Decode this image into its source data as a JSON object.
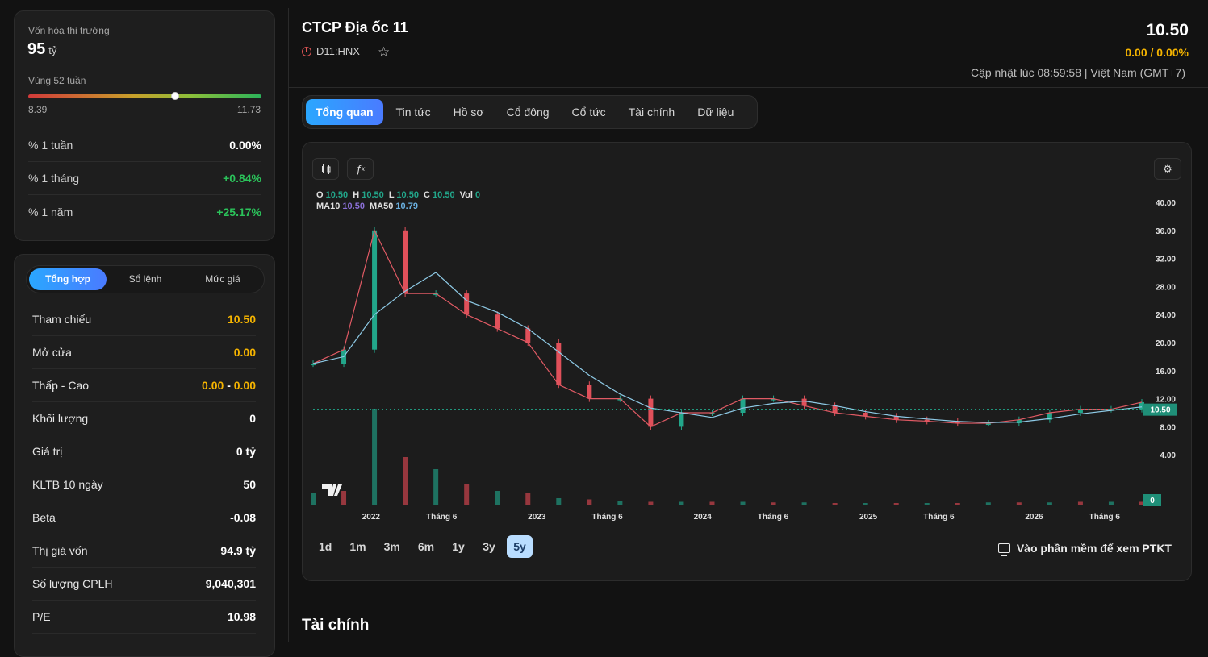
{
  "market_cap": {
    "label": "Vốn hóa thị trường",
    "value": "95",
    "unit": "tỷ"
  },
  "week52": {
    "label": "Vùng 52 tuần",
    "min": "8.39",
    "max": "11.73",
    "position": 0.63
  },
  "performance": [
    {
      "label": "% 1 tuần",
      "value": "0.00%",
      "trend": "flat"
    },
    {
      "label": "% 1 tháng",
      "value": "+0.84%",
      "trend": "up"
    },
    {
      "label": "% 1 năm",
      "value": "+25.17%",
      "trend": "up"
    }
  ],
  "stat_tabs": [
    "Tổng hợp",
    "Sổ lệnh",
    "Mức giá"
  ],
  "stats": {
    "ref": {
      "label": "Tham chiếu",
      "value": "10.50"
    },
    "open": {
      "label": "Mở cửa",
      "value": "0.00"
    },
    "lowhigh": {
      "label": "Thấp - Cao",
      "low": "0.00",
      "sep": "-",
      "high": "0.00"
    },
    "volume": {
      "label": "Khối lượng",
      "value": "0"
    },
    "valuetraded": {
      "label": "Giá trị",
      "value": "0 tỷ"
    },
    "avgvol": {
      "label": "KLTB 10 ngày",
      "value": "50"
    },
    "beta": {
      "label": "Beta",
      "value": "-0.08"
    },
    "mktcap": {
      "label": "Thị giá vốn",
      "value": "94.9 tỷ"
    },
    "shares": {
      "label": "Số lượng CPLH",
      "value": "9,040,301"
    },
    "pe": {
      "label": "P/E",
      "value": "10.98"
    }
  },
  "header": {
    "company": "CTCP Địa ốc 11",
    "ticker": "D11:HNX",
    "price": "10.50",
    "change": "0.00 / 0.00%",
    "updated": "Cập nhật lúc 08:59:58 | Việt Nam (GMT+7)"
  },
  "tabs": [
    "Tổng quan",
    "Tin tức",
    "Hồ sơ",
    "Cổ đông",
    "Cổ tức",
    "Tài chính",
    "Dữ liệu"
  ],
  "ohlc": {
    "o_label": "O",
    "o": "10.50",
    "h_label": "H",
    "h": "10.50",
    "l_label": "L",
    "l": "10.50",
    "c_label": "C",
    "c": "10.50",
    "vol_label": "Vol",
    "vol": "0",
    "ma10_label": "MA10",
    "ma10": "10.50",
    "ma50_label": "MA50",
    "ma50": "10.79"
  },
  "chart_data": {
    "type": "line",
    "title": "",
    "x": [
      "2021-09",
      "2021-10",
      "2021-11",
      "2021-12",
      "2022-01",
      "2022-02",
      "2022-03",
      "2022-04",
      "2022-05",
      "2022-06",
      "2022-08",
      "2022-10",
      "2022-12",
      "2023-03",
      "2023-06",
      "2023-09",
      "2023-12",
      "2024-03",
      "2024-06",
      "2024-09",
      "2024-12",
      "2025-03",
      "2025-06",
      "2025-09",
      "2025-12",
      "2026-03",
      "2026-06",
      "2026-09"
    ],
    "series": [
      {
        "name": "",
        "values": [
          17,
          19,
          36,
          27,
          27,
          24,
          22,
          20,
          14,
          12,
          12,
          8,
          10,
          10,
          12,
          12,
          11,
          10,
          9.5,
          9,
          8.8,
          8.5,
          8.5,
          9,
          10,
          10.5,
          10.5,
          11.5
        ]
      }
    ],
    "volume": [
      100,
      120,
      800,
      400,
      300,
      180,
      120,
      100,
      60,
      50,
      40,
      30,
      30,
      30,
      30,
      25,
      25,
      20,
      20,
      20,
      20,
      20,
      25,
      25,
      25,
      30,
      30,
      30
    ],
    "ylim": [
      0,
      40
    ],
    "yticks": [
      "40.00",
      "36.00",
      "32.00",
      "28.00",
      "24.00",
      "20.00",
      "16.00",
      "12.00",
      "8.00",
      "4.00"
    ],
    "xticks": [
      "2022",
      "Tháng 6",
      "2023",
      "Tháng 6",
      "2024",
      "Tháng 6",
      "2025",
      "Tháng 6",
      "2026",
      "Tháng 6"
    ],
    "price_tag": "10.50",
    "vol_tag": "0"
  },
  "ranges": [
    "1d",
    "1m",
    "3m",
    "6m",
    "1y",
    "3y",
    "5y"
  ],
  "active_range": "5y",
  "ptkt_label": "Vào phần mềm để xem PTKT",
  "section_title": "Tài chính",
  "colors": {
    "accent": "#2aa7ff",
    "up": "#2bc25a",
    "ref": "#f5b400",
    "candle_up": "#22a68a",
    "candle_down": "#e0505a"
  }
}
